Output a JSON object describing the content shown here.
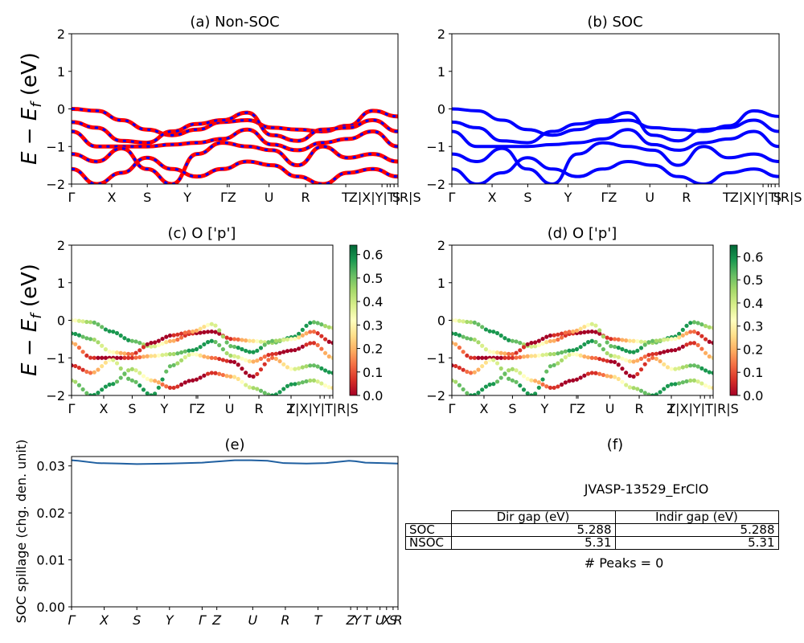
{
  "chart_data": [
    {
      "panel": "a",
      "type": "line",
      "title": "(a) Non-SOC",
      "ylabel": "E − E_f (eV)",
      "ylim": [
        -2,
        2
      ],
      "yticks": [
        "2",
        "1",
        "0",
        "−1",
        "−2"
      ],
      "xtick_labels": [
        "Γ",
        "X",
        "S",
        "Y",
        "ΓZ",
        "U",
        "R",
        "T",
        "Z|X|Y|T|R|S",
        "|",
        "|",
        "|",
        "|",
        "S"
      ],
      "series": [
        {
          "name": "",
          "color": "#ff0000",
          "style": "solid thick",
          "bands": [
            [
              0.0,
              -0.05,
              -0.3,
              -0.55,
              -0.7,
              -0.55,
              -0.35,
              -0.3,
              -0.5,
              -0.55,
              -0.6,
              -0.45,
              -0.05,
              -0.2
            ],
            [
              -0.35,
              -0.5,
              -0.85,
              -0.9,
              -0.6,
              -0.4,
              -0.3,
              -0.1,
              -0.7,
              -0.85,
              -0.55,
              -0.5,
              -0.3,
              -0.6
            ],
            [
              -0.6,
              -1.0,
              -1.0,
              -1.0,
              -0.95,
              -0.9,
              -0.8,
              -0.55,
              -0.95,
              -1.1,
              -0.9,
              -0.8,
              -0.6,
              -1.0
            ],
            [
              -1.2,
              -1.4,
              -1.05,
              -1.6,
              -2.0,
              -1.2,
              -0.9,
              -1.0,
              -1.1,
              -1.5,
              -1.0,
              -1.3,
              -1.2,
              -1.4
            ],
            [
              -1.6,
              -2.0,
              -1.7,
              -1.3,
              -1.6,
              -1.8,
              -1.6,
              -1.4,
              -1.5,
              -1.8,
              -2.0,
              -1.7,
              -1.6,
              -1.8
            ]
          ]
        },
        {
          "name": "",
          "color": "#0000ff",
          "style": "dashed",
          "bands": "same as SOC"
        }
      ]
    },
    {
      "panel": "b",
      "type": "line",
      "title": "(b) SOC",
      "ylim": [
        -2,
        2
      ],
      "yticks": [
        "2",
        "1",
        "0",
        "−1",
        "−2"
      ],
      "xtick_labels": [
        "Γ",
        "X",
        "S",
        "Y",
        "ΓZ",
        "U",
        "R",
        "T",
        "Z|X|Y|T|R|S",
        "|",
        "|",
        "|",
        "|",
        "S"
      ],
      "series": [
        {
          "name": "",
          "color": "#0000ff",
          "bands": [
            [
              0.0,
              -0.05,
              -0.3,
              -0.55,
              -0.7,
              -0.55,
              -0.35,
              -0.3,
              -0.5,
              -0.55,
              -0.6,
              -0.45,
              -0.05,
              -0.2
            ],
            [
              -0.35,
              -0.5,
              -0.85,
              -0.9,
              -0.6,
              -0.4,
              -0.3,
              -0.1,
              -0.7,
              -0.85,
              -0.55,
              -0.5,
              -0.3,
              -0.6
            ],
            [
              -0.6,
              -1.0,
              -1.0,
              -1.0,
              -0.95,
              -0.9,
              -0.8,
              -0.55,
              -0.95,
              -1.1,
              -0.9,
              -0.8,
              -0.6,
              -1.0
            ],
            [
              -1.2,
              -1.4,
              -1.05,
              -1.6,
              -2.0,
              -1.2,
              -0.9,
              -1.0,
              -1.1,
              -1.5,
              -1.0,
              -1.3,
              -1.2,
              -1.4
            ],
            [
              -1.6,
              -2.0,
              -1.7,
              -1.3,
              -1.6,
              -1.8,
              -1.6,
              -1.4,
              -1.5,
              -1.8,
              -2.0,
              -1.7,
              -1.6,
              -1.8
            ]
          ]
        }
      ]
    },
    {
      "panel": "c",
      "type": "scatter",
      "title": "(c)  O ['p']",
      "ylabel": "E − E_f (eV)",
      "ylim": [
        -2,
        2
      ],
      "colorbar": {
        "ticks": [
          "0.6",
          "0.5",
          "0.4",
          "0.3",
          "0.2",
          "0.1",
          "0.0"
        ],
        "range": [
          0.0,
          0.64
        ],
        "colormap": "RdYlGn"
      },
      "xtick_labels": [
        "Γ",
        "X",
        "S",
        "Y",
        "ΓZ",
        "U",
        "R",
        "T",
        "Z|X|Y|T|R|S",
        "|",
        "|",
        "|",
        "S"
      ]
    },
    {
      "panel": "d",
      "type": "scatter",
      "title": "(d) O ['p']",
      "ylim": [
        -2,
        2
      ],
      "colorbar": {
        "ticks": [
          "0.6",
          "0.5",
          "0.4",
          "0.3",
          "0.2",
          "0.1",
          "0.0"
        ],
        "range": [
          0.0,
          0.65
        ],
        "colormap": "RdYlGn"
      },
      "xtick_labels": [
        "Γ",
        "X",
        "S",
        "Y",
        "ΓZ",
        "U",
        "R",
        "T",
        "Z|X|Y|T|R|S",
        "|",
        "|",
        "|",
        "S"
      ]
    },
    {
      "panel": "e",
      "type": "line",
      "title": "(e)",
      "ylabel": "SOC spillage (chg. den. unit)",
      "ylim": [
        0.0,
        0.032
      ],
      "yticks": [
        "0.03",
        "0.02",
        "0.01",
        "0.00"
      ],
      "xtick_labels": [
        "Γ",
        "X",
        "S",
        "Y",
        "Γ",
        "Z",
        "U",
        "R",
        "T",
        "Z",
        "Y",
        "T",
        "U",
        "X",
        "S",
        "R"
      ],
      "series": [
        {
          "name": "",
          "color": "#1f5fa0",
          "x": [
            0,
            0.02,
            0.08,
            0.15,
            0.2,
            0.3,
            0.4,
            0.5,
            0.55,
            0.6,
            0.65,
            0.72,
            0.78,
            0.85,
            0.87,
            0.9,
            0.95,
            1.0
          ],
          "values": [
            0.0312,
            0.0311,
            0.0306,
            0.0305,
            0.0304,
            0.0305,
            0.0307,
            0.0312,
            0.0312,
            0.0311,
            0.0306,
            0.0305,
            0.0306,
            0.0311,
            0.031,
            0.0307,
            0.0306,
            0.0305
          ]
        }
      ]
    }
  ],
  "panel_f": {
    "title": "(f)",
    "material": "JVASP-13529_ErClO",
    "table": {
      "headers": [
        "",
        "Dir gap (eV)",
        "Indir gap (eV)"
      ],
      "rows": [
        [
          "SOC",
          "5.288",
          "5.288"
        ],
        [
          "NSOC",
          "5.31",
          "5.31"
        ]
      ]
    },
    "peaks": "# Peaks = 0"
  },
  "colors": {
    "nonsoc": "#ff0000",
    "soc": "#0000ff",
    "spillage": "#1f5fa0"
  }
}
